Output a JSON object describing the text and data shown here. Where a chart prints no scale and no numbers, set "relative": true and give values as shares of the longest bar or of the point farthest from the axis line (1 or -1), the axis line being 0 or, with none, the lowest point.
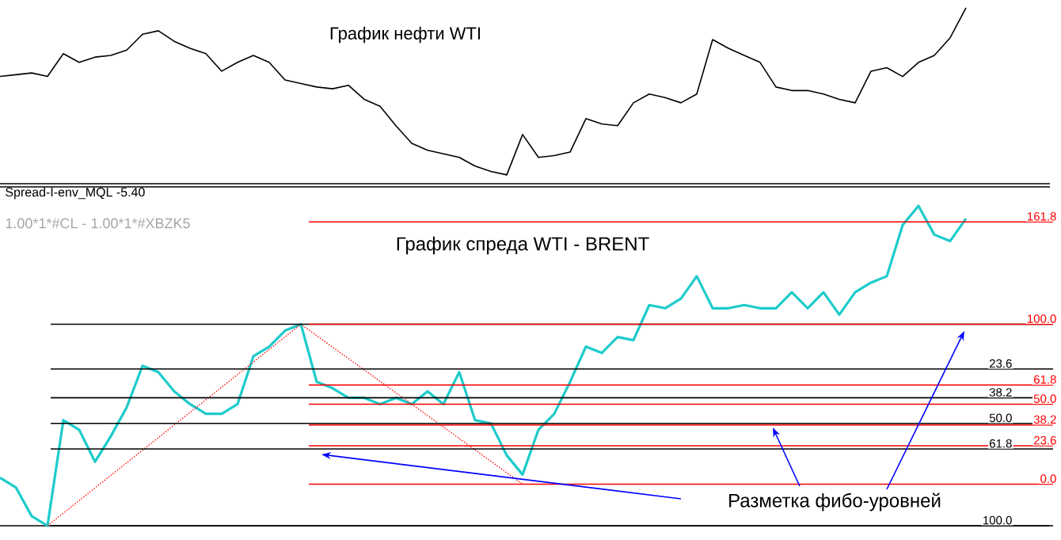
{
  "chart_data": [
    {
      "type": "line",
      "title": "График нефти WTI",
      "relative": true,
      "categories": [
        null,
        null,
        null,
        null,
        null,
        null,
        null,
        null,
        null,
        null,
        null,
        null,
        null,
        null,
        null,
        null,
        null,
        null,
        null,
        null,
        null,
        null,
        null,
        null,
        null,
        null,
        null,
        null,
        null,
        null,
        null,
        null,
        null,
        null,
        null,
        null,
        null,
        null,
        null,
        null,
        null,
        null,
        null,
        null,
        null,
        null,
        null,
        null,
        null,
        null,
        null,
        null,
        null,
        null,
        null,
        null,
        null,
        null,
        null,
        null,
        null,
        null
      ],
      "series": [
        {
          "color": "#000000",
          "values": [
            0.61,
            0.62,
            0.63,
            0.61,
            0.74,
            0.69,
            0.72,
            0.73,
            0.76,
            0.85,
            0.87,
            0.81,
            0.77,
            0.74,
            0.64,
            0.69,
            0.73,
            0.69,
            0.59,
            0.57,
            0.55,
            0.54,
            0.56,
            0.48,
            0.44,
            0.33,
            0.23,
            0.19,
            0.17,
            0.15,
            0.1,
            0.07,
            0.05,
            0.28,
            0.15,
            0.16,
            0.18,
            0.37,
            0.34,
            0.33,
            0.46,
            0.51,
            0.49,
            0.46,
            0.51,
            0.82,
            0.77,
            0.73,
            0.69,
            0.55,
            0.53,
            0.53,
            0.51,
            0.48,
            0.46,
            0.64,
            0.66,
            0.61,
            0.69,
            0.73,
            0.83,
            1
          ]
        }
      ]
    },
    {
      "type": "line",
      "title": "График спреда WTI - BRENT",
      "subtitle": "Spread-I-env_MQL -5.40",
      "relative": true,
      "annotations": [
        "1.00*1*#CL - 1.00*1*#XBZK5",
        "Разметка фибо-уровней",
        {
          "text": "23.6",
          "y": 0.49
        },
        {
          "text": "38.2",
          "y": 0.4
        },
        {
          "text": "50.0",
          "y": 0.32
        },
        {
          "text": "61.8",
          "y": 0.24
        },
        {
          "text": "100.0",
          "y": 0
        },
        {
          "text": "161.8",
          "y": 0.95
        },
        {
          "text": "100.0",
          "y": 0.63
        },
        {
          "text": "61.8",
          "y": 0.44
        },
        {
          "text": "50.0",
          "y": 0.38
        },
        {
          "text": "38.2",
          "y": 0.315
        },
        {
          "text": "23.6",
          "y": 0.25
        },
        {
          "text": "0.0",
          "y": 0.13
        }
      ],
      "categories": [
        null,
        null,
        null,
        null,
        null,
        null,
        null,
        null,
        null,
        null,
        null,
        null,
        null,
        null,
        null,
        null,
        null,
        null,
        null,
        null,
        null,
        null,
        null,
        null,
        null,
        null,
        null,
        null,
        null,
        null,
        null,
        null,
        null,
        null,
        null,
        null,
        null,
        null,
        null,
        null,
        null,
        null,
        null,
        null,
        null,
        null,
        null,
        null,
        null,
        null,
        null,
        null,
        null,
        null,
        null,
        null,
        null,
        null,
        null,
        null,
        null,
        null
      ],
      "series": [
        {
          "color": "#1ecbcb",
          "values": [
            0.15,
            0.12,
            0.03,
            0,
            0.33,
            0.3,
            0.2,
            0.28,
            0.37,
            0.5,
            0.48,
            0.42,
            0.38,
            0.35,
            0.35,
            0.38,
            0.53,
            0.56,
            0.61,
            0.63,
            0.45,
            0.43,
            0.4,
            0.4,
            0.38,
            0.4,
            0.38,
            0.42,
            0.38,
            0.48,
            0.33,
            0.32,
            0.22,
            0.16,
            0.3,
            0.35,
            0.45,
            0.56,
            0.54,
            0.59,
            0.58,
            0.69,
            0.68,
            0.71,
            0.78,
            0.68,
            0.68,
            0.69,
            0.68,
            0.68,
            0.73,
            0.68,
            0.73,
            0.66,
            0.73,
            0.76,
            0.78,
            0.94,
            1,
            0.91,
            0.89,
            0.96
          ]
        },
        {
          "color": "#ff0000",
          "line_style": "dotted",
          "values": [
            null,
            null,
            null,
            0,
            null,
            null,
            null,
            null,
            null,
            null,
            null,
            null,
            null,
            null,
            null,
            null,
            null,
            null,
            null,
            0.63,
            null,
            null,
            null,
            null,
            null,
            null,
            null,
            null,
            null,
            null,
            null,
            null,
            null,
            0.13,
            null,
            null,
            null,
            null,
            null,
            null,
            null,
            null,
            null,
            null,
            null,
            null,
            null,
            null,
            null,
            null,
            null,
            null,
            null,
            null,
            null,
            null,
            null,
            null,
            null,
            null,
            null,
            null
          ]
        }
      ],
      "ref_lines": [
        {
          "axis": "y",
          "value": 0.63,
          "color": "#000000"
        },
        {
          "axis": "y",
          "value": 0.49,
          "color": "#000000"
        },
        {
          "axis": "y",
          "value": 0.4,
          "color": "#000000"
        },
        {
          "axis": "y",
          "value": 0.32,
          "color": "#000000"
        },
        {
          "axis": "y",
          "value": 0.24,
          "color": "#000000"
        },
        {
          "axis": "y",
          "value": 0,
          "color": "#000000"
        },
        {
          "axis": "y",
          "value": 0.95,
          "color": "#ff0000"
        },
        {
          "axis": "y",
          "value": 0.63,
          "color": "#ff0000"
        },
        {
          "axis": "y",
          "value": 0.44,
          "color": "#ff0000"
        },
        {
          "axis": "y",
          "value": 0.38,
          "color": "#ff0000"
        },
        {
          "axis": "y",
          "value": 0.315,
          "color": "#ff0000"
        },
        {
          "axis": "y",
          "value": 0.25,
          "color": "#ff0000"
        },
        {
          "axis": "y",
          "value": 0.13,
          "color": "#ff0000"
        }
      ]
    }
  ]
}
